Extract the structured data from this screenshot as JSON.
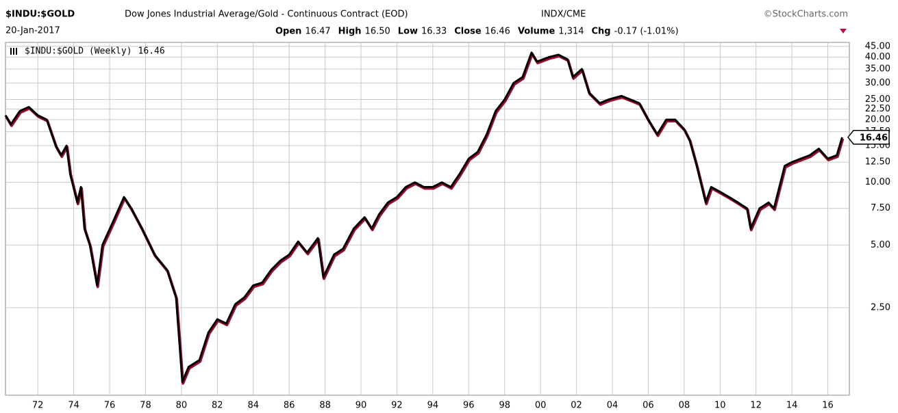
{
  "chart_data": {
    "type": "line",
    "title": "$INDU:$GOLD",
    "subtitle": "Dow Jones Industrial Average/Gold - Continuous Contract (EOD)",
    "exchange": "INDX/CME",
    "source": "©StockCharts.com",
    "date": "20-Jan-2017",
    "quote": [
      {
        "label": "Open",
        "text": "16.47"
      },
      {
        "label": "High",
        "text": "16.50"
      },
      {
        "label": "Low",
        "text": "16.33"
      },
      {
        "label": "Close",
        "text": "16.46"
      },
      {
        "label": "Volume",
        "text": "1,314"
      },
      {
        "label": "Chg",
        "text": "-0.17 (-1.01%)"
      }
    ],
    "log_scale": true,
    "grid": true,
    "xlim": [
      1970.2,
      2017.2
    ],
    "ylim": [
      0.95,
      47
    ],
    "xticks": [
      {
        "value": 1972,
        "label": "72"
      },
      {
        "value": 1974,
        "label": "74"
      },
      {
        "value": 1976,
        "label": "76"
      },
      {
        "value": 1978,
        "label": "78"
      },
      {
        "value": 1980,
        "label": "80"
      },
      {
        "value": 1982,
        "label": "82"
      },
      {
        "value": 1984,
        "label": "84"
      },
      {
        "value": 1986,
        "label": "86"
      },
      {
        "value": 1988,
        "label": "88"
      },
      {
        "value": 1990,
        "label": "90"
      },
      {
        "value": 1992,
        "label": "92"
      },
      {
        "value": 1994,
        "label": "94"
      },
      {
        "value": 1996,
        "label": "96"
      },
      {
        "value": 1998,
        "label": "98"
      },
      {
        "value": 2000,
        "label": "00"
      },
      {
        "value": 2002,
        "label": "02"
      },
      {
        "value": 2004,
        "label": "04"
      },
      {
        "value": 2006,
        "label": "06"
      },
      {
        "value": 2008,
        "label": "08"
      },
      {
        "value": 2010,
        "label": "10"
      },
      {
        "value": 2012,
        "label": "12"
      },
      {
        "value": 2014,
        "label": "14"
      },
      {
        "value": 2016,
        "label": "16"
      }
    ],
    "yticks": [
      {
        "value": 45,
        "label": "45.00"
      },
      {
        "value": 40,
        "label": "40.00"
      },
      {
        "value": 35,
        "label": "35.00"
      },
      {
        "value": 30,
        "label": "30.00"
      },
      {
        "value": 25,
        "label": "25.00"
      },
      {
        "value": 22.5,
        "label": "22.50"
      },
      {
        "value": 20,
        "label": "20.00"
      },
      {
        "value": 17.5,
        "label": "17.50"
      },
      {
        "value": 15,
        "label": "15.00"
      },
      {
        "value": 12.5,
        "label": "12.50"
      },
      {
        "value": 10,
        "label": "10.00"
      },
      {
        "value": 7.5,
        "label": "7.50"
      },
      {
        "value": 5,
        "label": "5.00"
      },
      {
        "value": 2.5,
        "label": "2.50"
      }
    ],
    "x": [
      1970.2,
      1970.5,
      1971,
      1971.5,
      1972,
      1972.5,
      1973,
      1973.3,
      1973.6,
      1973.8,
      1974.2,
      1974.4,
      1974.6,
      1974.9,
      1975.3,
      1975.6,
      1976.2,
      1976.8,
      1977.2,
      1977.8,
      1978.5,
      1979.2,
      1979.7,
      1980.05,
      1980.4,
      1981,
      1981.5,
      1982,
      1982.5,
      1983,
      1983.5,
      1984,
      1984.5,
      1985,
      1985.5,
      1986,
      1986.5,
      1987,
      1987.6,
      1987.9,
      1988.5,
      1989,
      1989.6,
      1990.2,
      1990.6,
      1991,
      1991.5,
      1992,
      1992.5,
      1993,
      1993.5,
      1994,
      1994.5,
      1995,
      1995.5,
      1996,
      1996.5,
      1997,
      1997.5,
      1998,
      1998.5,
      1999,
      1999.5,
      1999.8,
      2000.5,
      2001,
      2001.5,
      2001.8,
      2002.3,
      2002.7,
      2003.3,
      2003.8,
      2004.5,
      2005,
      2005.5,
      2006,
      2006.5,
      2007,
      2007.5,
      2008,
      2008.3,
      2008.7,
      2009.2,
      2009.5,
      2010,
      2010.5,
      2011,
      2011.5,
      2011.7,
      2012.2,
      2012.7,
      2013,
      2013.3,
      2013.6,
      2014,
      2014.5,
      2015,
      2015.5,
      2016,
      2016.5,
      2016.8
    ],
    "series": [
      {
        "name": "$INDU:$GOLD (Weekly)",
        "color": "#000000",
        "values": [
          21,
          19,
          22,
          23,
          21,
          20,
          15,
          13.5,
          15,
          11,
          8,
          9.5,
          6,
          5,
          3.2,
          5,
          6.5,
          8.5,
          7.5,
          6,
          4.5,
          3.8,
          2.8,
          1.1,
          1.3,
          1.4,
          1.9,
          2.2,
          2.1,
          2.6,
          2.8,
          3.2,
          3.3,
          3.8,
          4.2,
          4.5,
          5.2,
          4.6,
          5.4,
          3.5,
          4.5,
          4.8,
          6.0,
          6.8,
          6.0,
          7.0,
          8.0,
          8.5,
          9.5,
          10,
          9.5,
          9.5,
          10,
          9.5,
          11,
          13,
          14,
          17,
          22,
          25,
          30,
          32,
          42,
          38,
          40,
          41,
          39,
          32,
          35,
          27,
          24,
          25,
          26,
          25,
          24,
          20,
          17,
          20,
          20,
          18,
          16,
          12,
          8,
          9.5,
          9,
          8.5,
          8,
          7.5,
          6,
          7.5,
          8,
          7.5,
          9.5,
          12,
          12.5,
          13,
          13.5,
          14.5,
          13,
          13.5,
          16.46
        ]
      }
    ]
  }
}
